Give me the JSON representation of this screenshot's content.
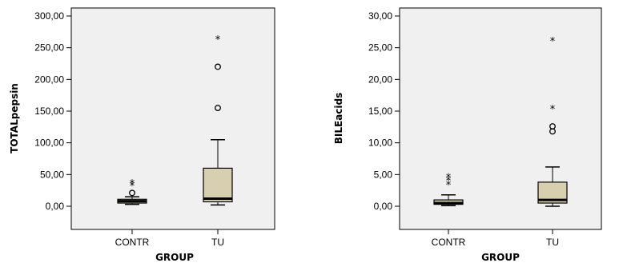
{
  "chart_data": [
    {
      "type": "boxplot",
      "xlabel": "GROUP",
      "ylabel": "TOTALpepsin",
      "ylim": [
        0,
        300
      ],
      "yticks": [
        "0,00",
        "50,00",
        "100,00",
        "150,00",
        "200,00",
        "250,00",
        "300,00"
      ],
      "ytick_values": [
        0,
        50,
        100,
        150,
        200,
        250,
        300
      ],
      "grid": false,
      "box_color": "#d8cfae",
      "categories": [
        "CONTR",
        "TU"
      ],
      "boxes": [
        {
          "category": "CONTR",
          "whisker_low": 3,
          "q1": 5,
          "median": 8,
          "q3": 11,
          "whisker_high": 15,
          "outliers": [
            21
          ],
          "extremes": [
            34,
            38
          ]
        },
        {
          "category": "TU",
          "whisker_low": 2,
          "q1": 7,
          "median": 12,
          "q3": 60,
          "whisker_high": 105,
          "outliers": [
            155,
            220
          ],
          "extremes": [
            265
          ]
        }
      ]
    },
    {
      "type": "boxplot",
      "xlabel": "GROUP",
      "ylabel": "BILEacids",
      "ylim": [
        0,
        30
      ],
      "yticks": [
        "0,00",
        "5,00",
        "10,00",
        "15,00",
        "20,00",
        "25,00",
        "30,00"
      ],
      "ytick_values": [
        0,
        5,
        10,
        15,
        20,
        25,
        30
      ],
      "grid": false,
      "box_color": "#d8cfae",
      "categories": [
        "CONTR",
        "TU"
      ],
      "boxes": [
        {
          "category": "CONTR",
          "whisker_low": 0.1,
          "q1": 0.3,
          "median": 0.5,
          "q3": 1.0,
          "whisker_high": 1.8,
          "outliers": [],
          "extremes": [
            3.5,
            4.2,
            4.7
          ]
        },
        {
          "category": "TU",
          "whisker_low": 0.0,
          "q1": 0.5,
          "median": 1.0,
          "q3": 3.8,
          "whisker_high": 6.2,
          "outliers": [
            11.8,
            12.6
          ],
          "extremes": [
            15.5,
            26.2
          ]
        }
      ]
    }
  ],
  "symbols": {
    "outlier_icon": "circle",
    "extreme_icon": "asterisk"
  }
}
